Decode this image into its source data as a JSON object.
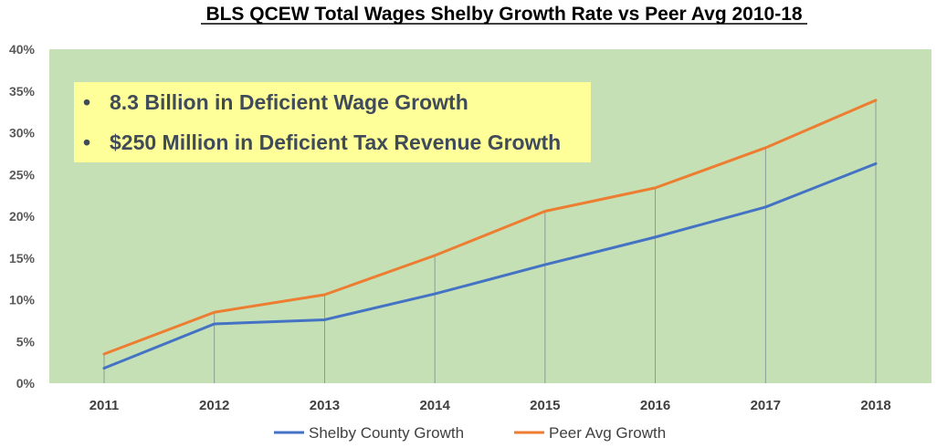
{
  "chart_data": {
    "type": "line",
    "title": "BLS QCEW Total Wages Shelby Growth Rate vs Peer Avg 2010-18",
    "categories": [
      "2011",
      "2012",
      "2013",
      "2014",
      "2015",
      "2016",
      "2017",
      "2018"
    ],
    "series": [
      {
        "name": "Shelby County Growth",
        "color": "#4472c4",
        "values": [
          1.8,
          7.1,
          7.6,
          10.7,
          14.2,
          17.5,
          21.1,
          26.3
        ]
      },
      {
        "name": "Peer Avg Growth",
        "color": "#ed7d31",
        "values": [
          3.5,
          8.5,
          10.6,
          15.3,
          20.6,
          23.4,
          28.2,
          33.9
        ]
      }
    ],
    "yticks": [
      "0%",
      "5%",
      "10%",
      "15%",
      "20%",
      "25%",
      "30%",
      "35%",
      "40%"
    ],
    "ylim": [
      0,
      40
    ],
    "yunit": "%",
    "xlabel": "",
    "ylabel": "",
    "legend_position": "bottom",
    "drop_lines": true,
    "annotation": {
      "bullets": [
        "8.3 Billion in Deficient Wage Growth",
        "$250 Million in Deficient Tax Revenue Growth"
      ]
    },
    "colors": {
      "plot_background": "#c5e0b4",
      "annotation_background": "#ffff99",
      "drop_line": "#7f8c8d"
    }
  }
}
